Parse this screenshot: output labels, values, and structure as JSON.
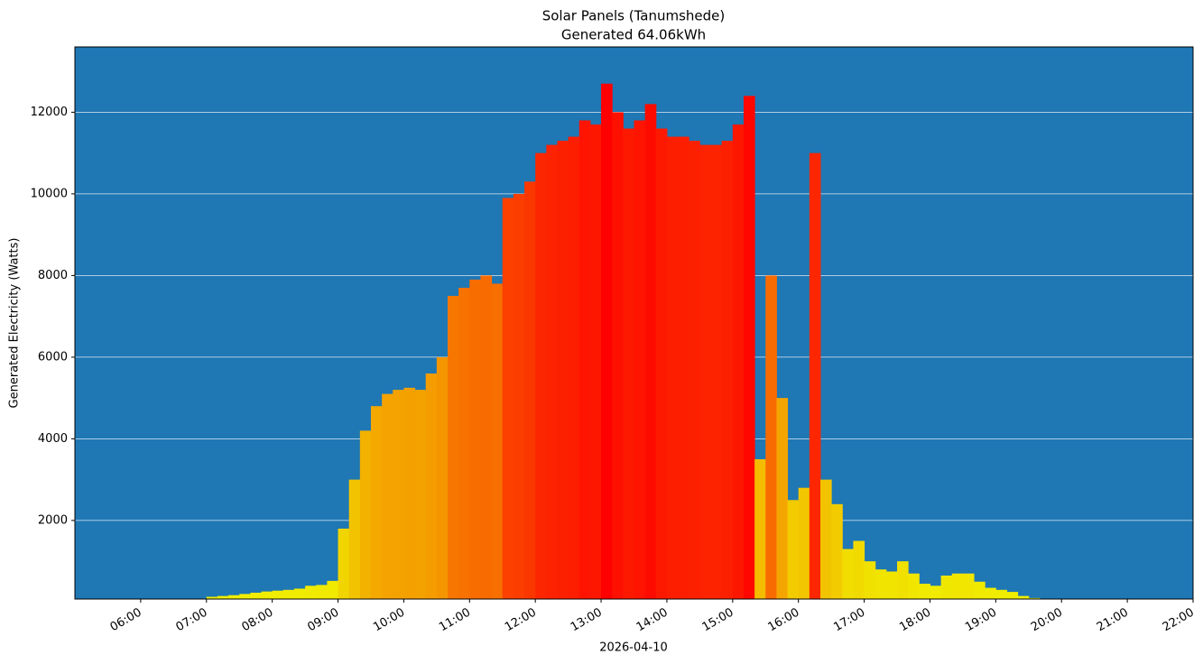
{
  "chart_data": {
    "type": "bar",
    "title": "Solar Panels (Tanumshede)",
    "subtitle": "Generated 64.06kWh",
    "x_label": "2026-04-10",
    "y_label": "Generated Electricity (Watts)",
    "background": "#1f77b4",
    "grid": true,
    "colormap": [
      "#f0f000",
      "#f59000",
      "#ff0000"
    ],
    "x": [
      "06:00",
      "06:10",
      "06:20",
      "06:30",
      "06:40",
      "06:50",
      "07:00",
      "07:10",
      "07:20",
      "07:30",
      "07:40",
      "07:50",
      "08:00",
      "08:10",
      "08:20",
      "08:30",
      "08:40",
      "08:50",
      "09:00",
      "09:10",
      "09:20",
      "09:30",
      "09:40",
      "09:50",
      "10:00",
      "10:10",
      "10:20",
      "10:30",
      "10:40",
      "10:50",
      "11:00",
      "11:10",
      "11:20",
      "11:30",
      "11:40",
      "11:50",
      "12:00",
      "12:10",
      "12:20",
      "12:30",
      "12:40",
      "12:50",
      "13:00",
      "13:10",
      "13:20",
      "13:30",
      "13:40",
      "13:50",
      "14:00",
      "14:10",
      "14:20",
      "14:30",
      "14:40",
      "14:50",
      "15:00",
      "15:10",
      "15:20",
      "15:30",
      "15:40",
      "15:50",
      "16:00",
      "16:10",
      "16:20",
      "16:30",
      "16:40",
      "16:50",
      "17:00",
      "17:10",
      "17:20",
      "17:30",
      "17:40",
      "17:50",
      "18:00",
      "18:10",
      "18:20",
      "18:30",
      "18:40",
      "18:50",
      "19:00",
      "19:10",
      "19:20",
      "19:30"
    ],
    "values": [
      40,
      40,
      40,
      50,
      60,
      60,
      130,
      150,
      170,
      200,
      230,
      260,
      280,
      300,
      330,
      400,
      420,
      520,
      1800,
      3000,
      4200,
      4800,
      5100,
      5200,
      5250,
      5200,
      5600,
      6000,
      7500,
      7700,
      7900,
      8000,
      7800,
      9900,
      10000,
      10300,
      11000,
      11200,
      11300,
      11400,
      11800,
      11700,
      12700,
      12000,
      11600,
      11800,
      12200,
      11600,
      11400,
      11400,
      11300,
      11200,
      11200,
      11300,
      11700,
      12400,
      3500,
      8000,
      5000,
      2500,
      2800,
      11000,
      3000,
      2400,
      1300,
      1500,
      1000,
      800,
      750,
      1000,
      700,
      450,
      400,
      650,
      700,
      700,
      500,
      350,
      300,
      250,
      150,
      100
    ],
    "xlim": [
      "05:00",
      "22:00"
    ],
    "xticks": [
      "06:00",
      "07:00",
      "08:00",
      "09:00",
      "10:00",
      "11:00",
      "12:00",
      "13:00",
      "14:00",
      "15:00",
      "16:00",
      "17:00",
      "18:00",
      "19:00",
      "20:00",
      "21:00",
      "22:00"
    ],
    "ylim": [
      75,
      13600
    ],
    "yticks": [
      2000,
      4000,
      6000,
      8000,
      10000,
      12000
    ]
  }
}
